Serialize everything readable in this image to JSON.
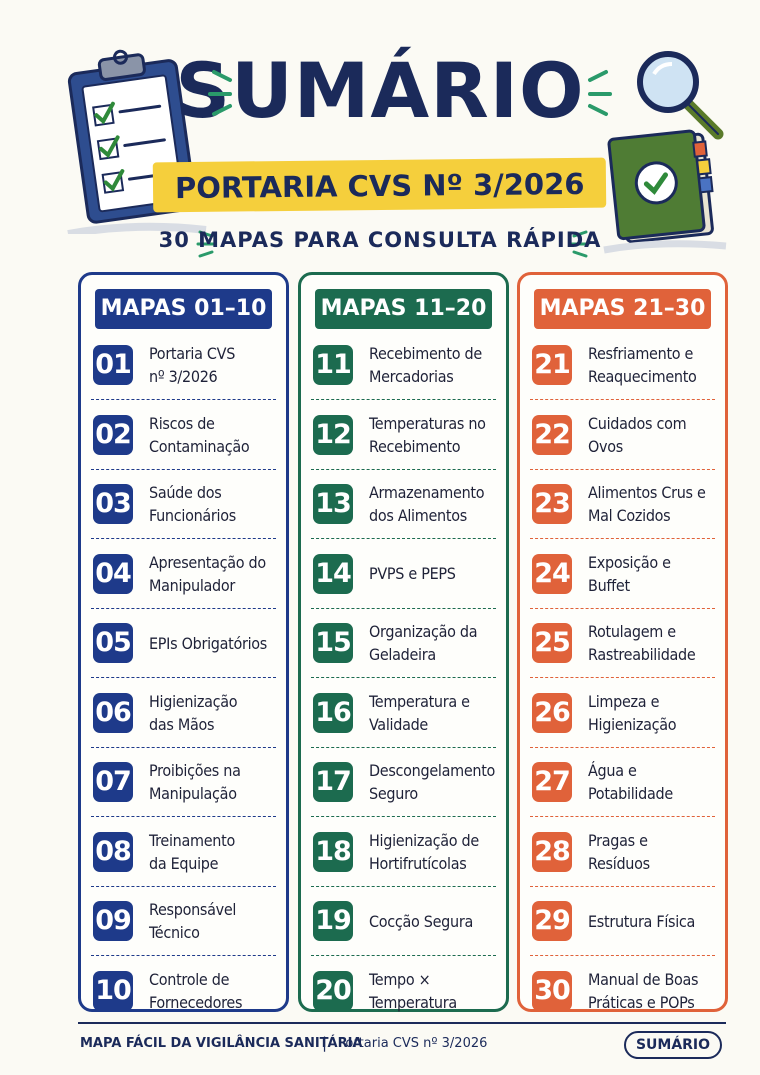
{
  "header": {
    "title": "SUMÁRIO",
    "subtitle": "PORTARIA CVS Nº 3/2026",
    "tagline": "30 MAPAS PARA CONSULTA RÁPIDA"
  },
  "colors": {
    "navy": "#1b2a5a",
    "blue": "#1e3a8a",
    "green": "#1c6b4f",
    "orange": "#e0623a",
    "yellow": "#f5cf3c"
  },
  "icons": [
    "clipboard-checklist-icon",
    "magnifier-icon",
    "book-check-icon"
  ],
  "columns": [
    {
      "heading": "MAPAS 01–10",
      "items": [
        {
          "num": "01",
          "label": "Portaria CVS\nnº 3/2026"
        },
        {
          "num": "02",
          "label": "Riscos de\nContaminação"
        },
        {
          "num": "03",
          "label": "Saúde dos\nFuncionários"
        },
        {
          "num": "04",
          "label": "Apresentação do\nManipulador"
        },
        {
          "num": "05",
          "label": "EPIs Obrigatórios"
        },
        {
          "num": "06",
          "label": "Higienização\ndas Mãos"
        },
        {
          "num": "07",
          "label": "Proibições na\nManipulação"
        },
        {
          "num": "08",
          "label": "Treinamento\nda Equipe"
        },
        {
          "num": "09",
          "label": "Responsável\nTécnico"
        },
        {
          "num": "10",
          "label": "Controle de\nFornecedores"
        }
      ]
    },
    {
      "heading": "MAPAS 11–20",
      "items": [
        {
          "num": "11",
          "label": "Recebimento de\nMercadorias"
        },
        {
          "num": "12",
          "label": "Temperaturas no\nRecebimento"
        },
        {
          "num": "13",
          "label": "Armazenamento\ndos Alimentos"
        },
        {
          "num": "14",
          "label": "PVPS e PEPS"
        },
        {
          "num": "15",
          "label": "Organização da\nGeladeira"
        },
        {
          "num": "16",
          "label": "Temperatura e\nValidade"
        },
        {
          "num": "17",
          "label": "Descongelamento\nSeguro"
        },
        {
          "num": "18",
          "label": "Higienização de\nHortifrutícolas"
        },
        {
          "num": "19",
          "label": "Cocção Segura"
        },
        {
          "num": "20",
          "label": "Tempo ×\nTemperatura"
        }
      ]
    },
    {
      "heading": "MAPAS 21–30",
      "items": [
        {
          "num": "21",
          "label": "Resfriamento e\nReaquecimento"
        },
        {
          "num": "22",
          "label": "Cuidados com Ovos"
        },
        {
          "num": "23",
          "label": "Alimentos Crus e\nMal Cozidos"
        },
        {
          "num": "24",
          "label": "Exposição e Buffet"
        },
        {
          "num": "25",
          "label": "Rotulagem e\nRastreabilidade"
        },
        {
          "num": "26",
          "label": "Limpeza e\nHigienização"
        },
        {
          "num": "27",
          "label": "Água e\nPotabilidade"
        },
        {
          "num": "28",
          "label": "Pragas e\nResíduos"
        },
        {
          "num": "29",
          "label": "Estrutura Física"
        },
        {
          "num": "30",
          "label": "Manual de Boas\nPráticas e POPs"
        }
      ]
    }
  ],
  "footer": {
    "left": "MAPA FÁCIL DA VIGILÂNCIA SANITÁRIA",
    "separator": "|",
    "reference": "Portaria CVS nº 3/2026",
    "pill": "SUMÁRIO"
  }
}
